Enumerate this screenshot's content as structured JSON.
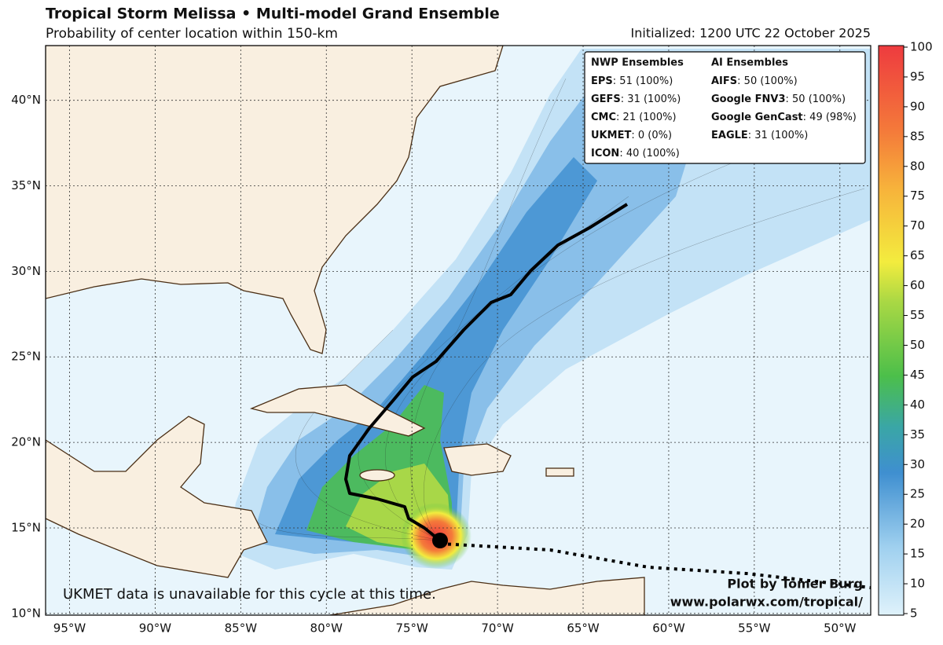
{
  "header": {
    "title": "Tropical Storm Melissa • Multi-model Grand Ensemble",
    "subtitle": "Probability of center location within 150-km",
    "initialized": "Initialized: 1200 UTC 22 October 2025"
  },
  "map": {
    "lon_range": [
      -96.4,
      -48.2
    ],
    "lat_range": [
      9.9,
      43.2
    ],
    "lon_ticks": [
      {
        "value": -95,
        "label": "95°W"
      },
      {
        "value": -90,
        "label": "90°W"
      },
      {
        "value": -85,
        "label": "85°W"
      },
      {
        "value": -80,
        "label": "80°W"
      },
      {
        "value": -75,
        "label": "75°W"
      },
      {
        "value": -70,
        "label": "70°W"
      },
      {
        "value": -65,
        "label": "65°W"
      },
      {
        "value": -60,
        "label": "60°W"
      },
      {
        "value": -55,
        "label": "55°W"
      },
      {
        "value": -50,
        "label": "50°W"
      }
    ],
    "lat_ticks": [
      {
        "value": 10,
        "label": "10°N"
      },
      {
        "value": 15,
        "label": "15°N"
      },
      {
        "value": 20,
        "label": "20°N"
      },
      {
        "value": 25,
        "label": "25°N"
      },
      {
        "value": 30,
        "label": "30°N"
      },
      {
        "value": 35,
        "label": "35°N"
      },
      {
        "value": 40,
        "label": "40°N"
      }
    ]
  },
  "legend": {
    "nwp": {
      "title": "NWP Ensembles",
      "entries": [
        {
          "model": "EPS",
          "detail": ": 51 (100%)"
        },
        {
          "model": "GEFS",
          "detail": ": 31 (100%)"
        },
        {
          "model": "CMC",
          "detail": ": 21 (100%)"
        },
        {
          "model": "UKMET",
          "detail": ": 0 (0%)"
        },
        {
          "model": "ICON",
          "detail": ": 40 (100%)"
        }
      ]
    },
    "ai": {
      "title": "AI Ensembles",
      "entries": [
        {
          "model": "AIFS",
          "detail": ": 50 (100%)"
        },
        {
          "model": "Google FNV3",
          "detail": ": 50 (100%)"
        },
        {
          "model": "Google GenCast",
          "detail": ": 49 (98%)"
        },
        {
          "model": "EAGLE",
          "detail": ": 31 (100%)"
        }
      ]
    }
  },
  "colorbar": {
    "range": [
      5,
      100
    ],
    "ticks": [
      5,
      10,
      15,
      20,
      25,
      30,
      35,
      40,
      45,
      50,
      55,
      60,
      65,
      70,
      75,
      80,
      85,
      90,
      95,
      100
    ]
  },
  "annotation": "UKMET data is unavailable for this cycle at this time.",
  "credit": {
    "author": "Plot by Tomer Burg",
    "url": "www.polarwx.com/tropical/"
  }
}
